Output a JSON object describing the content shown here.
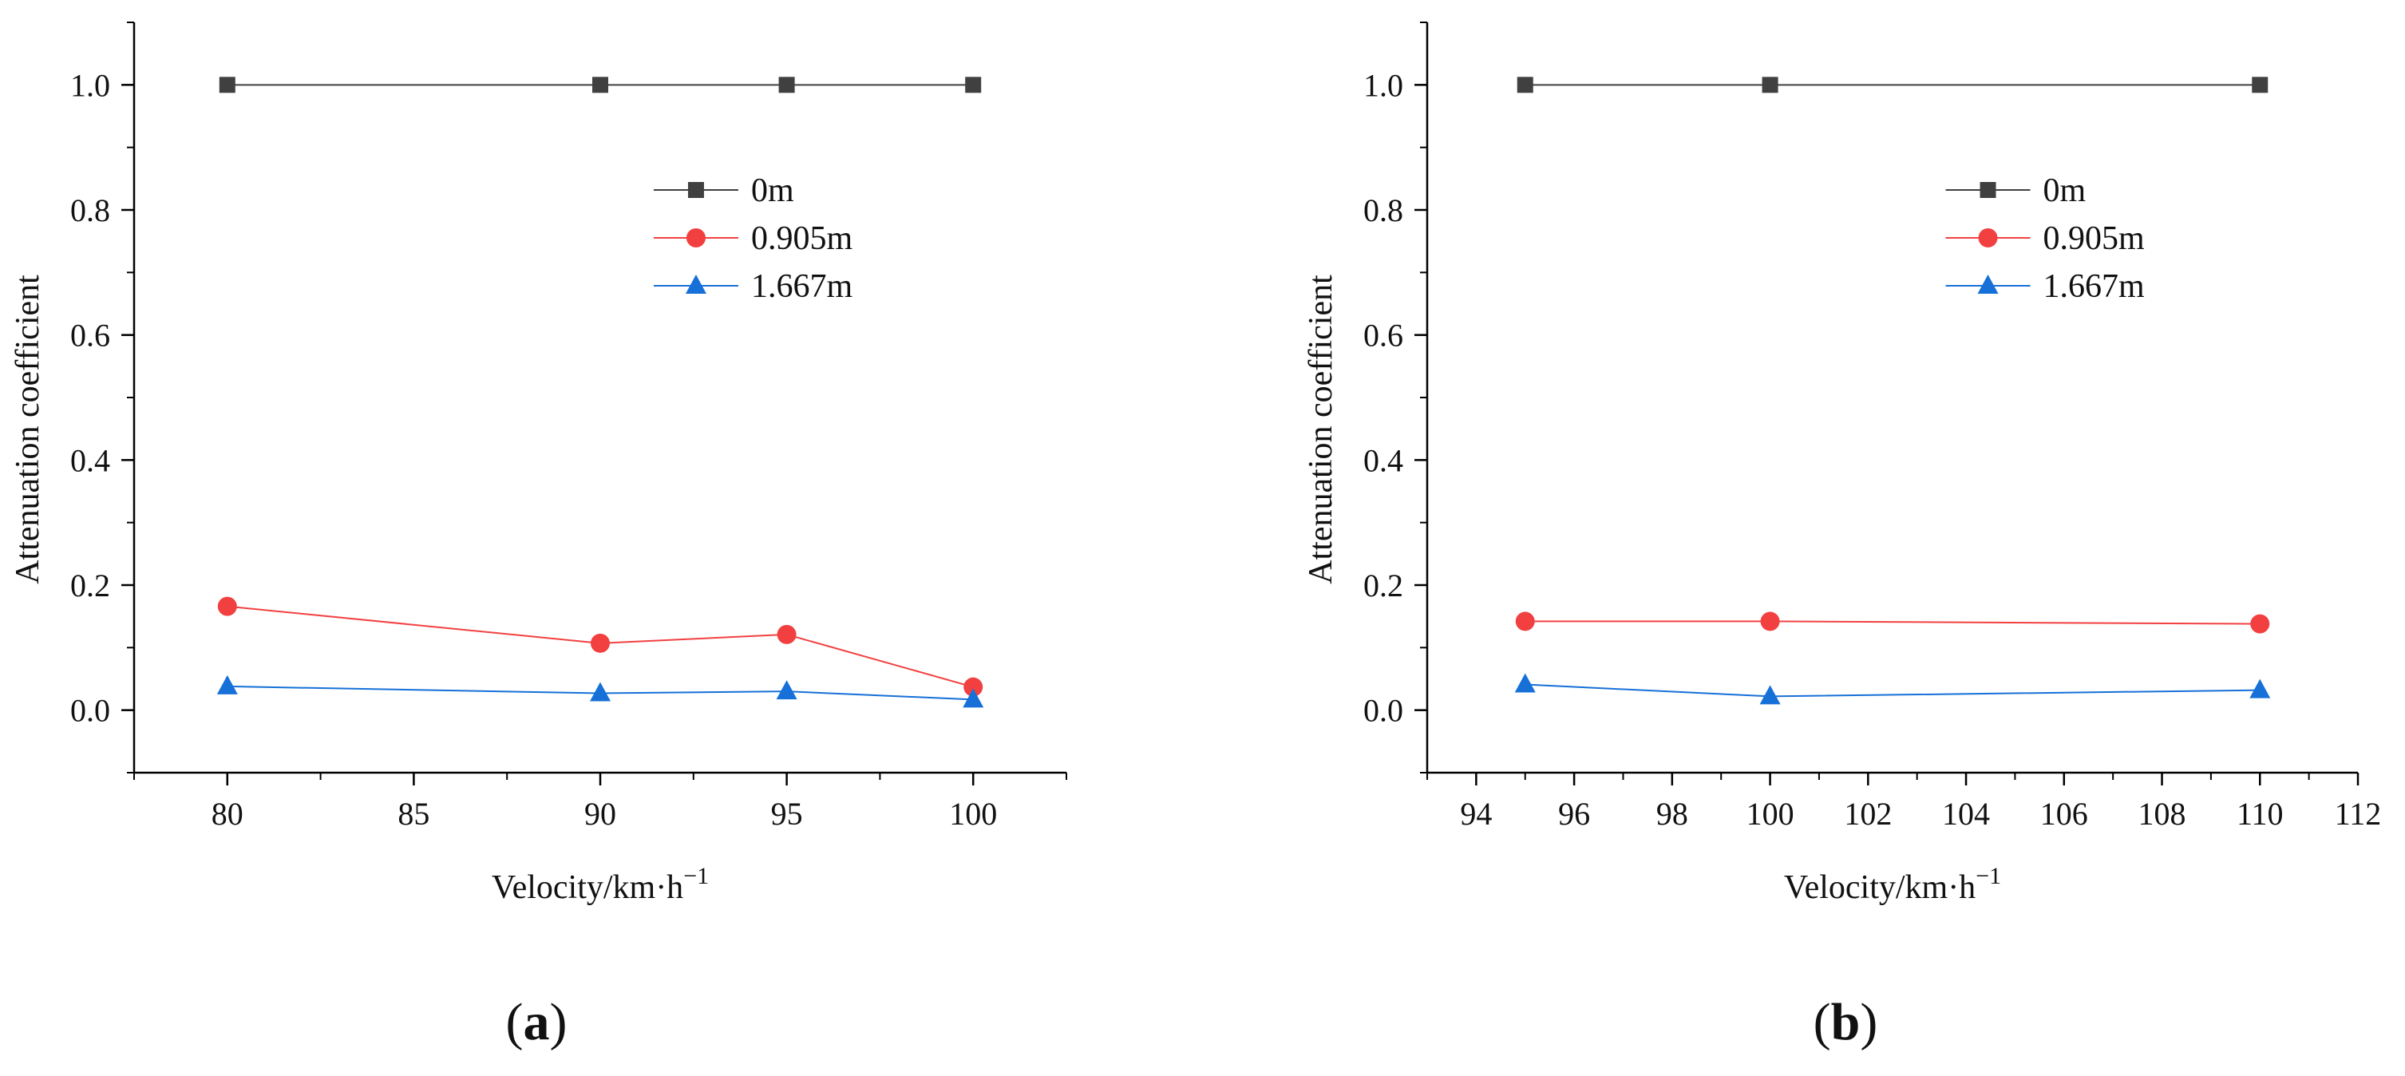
{
  "chart_data": [
    {
      "type": "line",
      "panel_label": "a",
      "title": "",
      "xlabel": "Velocity/km·h",
      "xlabel_sup": "−1",
      "ylabel": "Attenuation coefficient",
      "xlim": [
        77.5,
        102.5
      ],
      "ylim": [
        -0.1,
        1.1
      ],
      "xticks": [
        80,
        85,
        90,
        95,
        100
      ],
      "yticks": [
        0.0,
        0.2,
        0.4,
        0.6,
        0.8,
        1.0
      ],
      "ytick_labels": [
        "0.0",
        "0.2",
        "0.4",
        "0.6",
        "0.8",
        "1.0"
      ],
      "xminor_step": 2.5,
      "yminor_step": 0.1,
      "grid": false,
      "legend_position": "top-right",
      "x": [
        80,
        90,
        95,
        100
      ],
      "series": [
        {
          "name": "0m",
          "color": "#404040",
          "marker": "square",
          "values": [
            1.0,
            1.0,
            1.0,
            1.0
          ]
        },
        {
          "name": "0.905m",
          "color": "#f24040",
          "marker": "circle",
          "values": [
            0.166,
            0.107,
            0.121,
            0.037
          ]
        },
        {
          "name": "1.667m",
          "color": "#1670d8",
          "marker": "triangle",
          "values": [
            0.038,
            0.027,
            0.03,
            0.017
          ]
        }
      ]
    },
    {
      "type": "line",
      "panel_label": "b",
      "title": "",
      "xlabel": "Velocity/km·h",
      "xlabel_sup": "−1",
      "ylabel": "Attenuation coefficient",
      "xlim": [
        93,
        112
      ],
      "ylim": [
        -0.1,
        1.1
      ],
      "xticks": [
        94,
        96,
        98,
        100,
        102,
        104,
        106,
        108,
        110,
        112
      ],
      "yticks": [
        0.0,
        0.2,
        0.4,
        0.6,
        0.8,
        1.0
      ],
      "ytick_labels": [
        "0.0",
        "0.2",
        "0.4",
        "0.6",
        "0.8",
        "1.0"
      ],
      "xminor_step": 1,
      "yminor_step": 0.1,
      "grid": false,
      "legend_position": "top-right",
      "x": [
        95,
        100,
        110
      ],
      "series": [
        {
          "name": "0m",
          "color": "#404040",
          "marker": "square",
          "values": [
            1.0,
            1.0,
            1.0
          ]
        },
        {
          "name": "0.905m",
          "color": "#f24040",
          "marker": "circle",
          "values": [
            0.142,
            0.142,
            0.138
          ]
        },
        {
          "name": "1.667m",
          "color": "#1670d8",
          "marker": "triangle",
          "values": [
            0.041,
            0.022,
            0.032
          ]
        }
      ]
    }
  ]
}
